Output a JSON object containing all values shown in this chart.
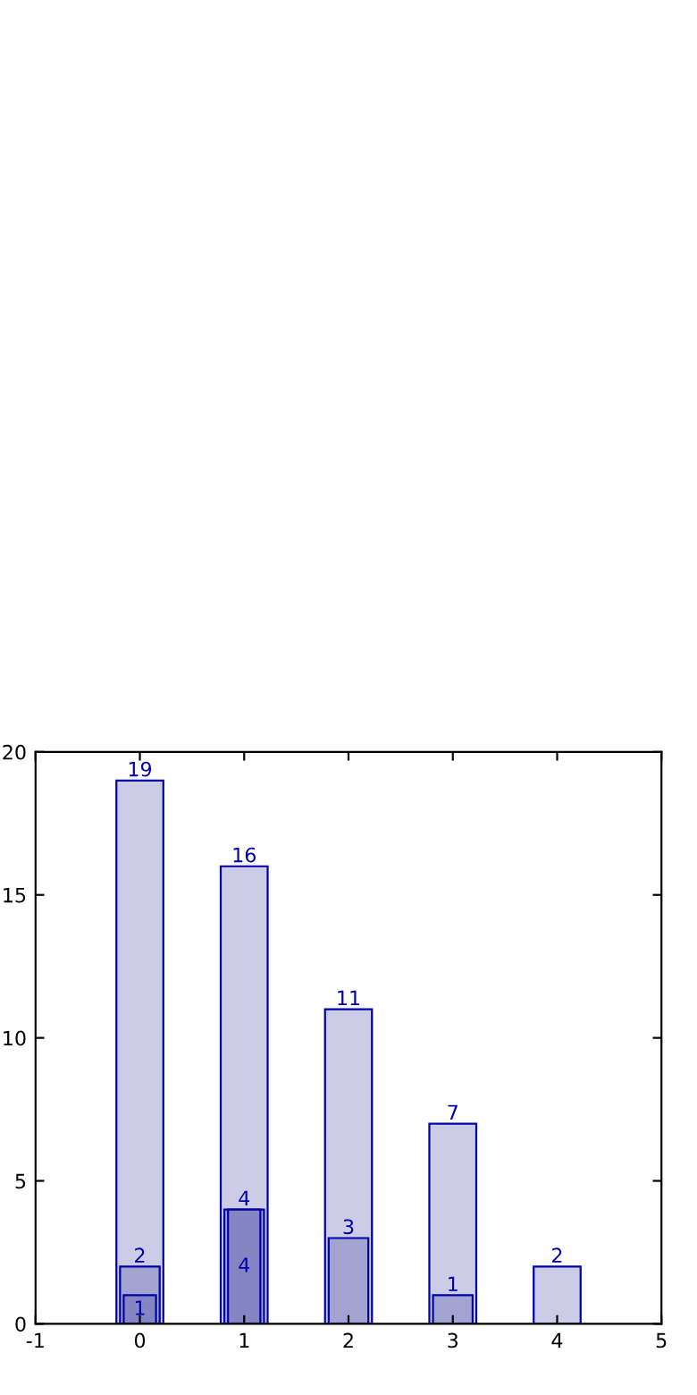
{
  "chart_data": {
    "type": "bar",
    "x": [
      0,
      1,
      2,
      3,
      4
    ],
    "series": [
      {
        "color": "#cccce6",
        "values": [
          19,
          16,
          11,
          7,
          2
        ]
      },
      {
        "color": "#a3a3d1",
        "values": [
          2,
          4,
          3,
          1,
          null
        ]
      },
      {
        "color": "#8585c4",
        "values": [
          1,
          4,
          null,
          null,
          null
        ]
      }
    ],
    "xlim": [
      -1,
      5
    ],
    "xticks": [
      -1,
      0,
      1,
      2,
      3,
      4,
      5
    ],
    "ylim": [
      0,
      20
    ],
    "yticks": [
      0,
      5,
      10,
      15,
      20
    ],
    "grid": false,
    "data_labels": true
  }
}
